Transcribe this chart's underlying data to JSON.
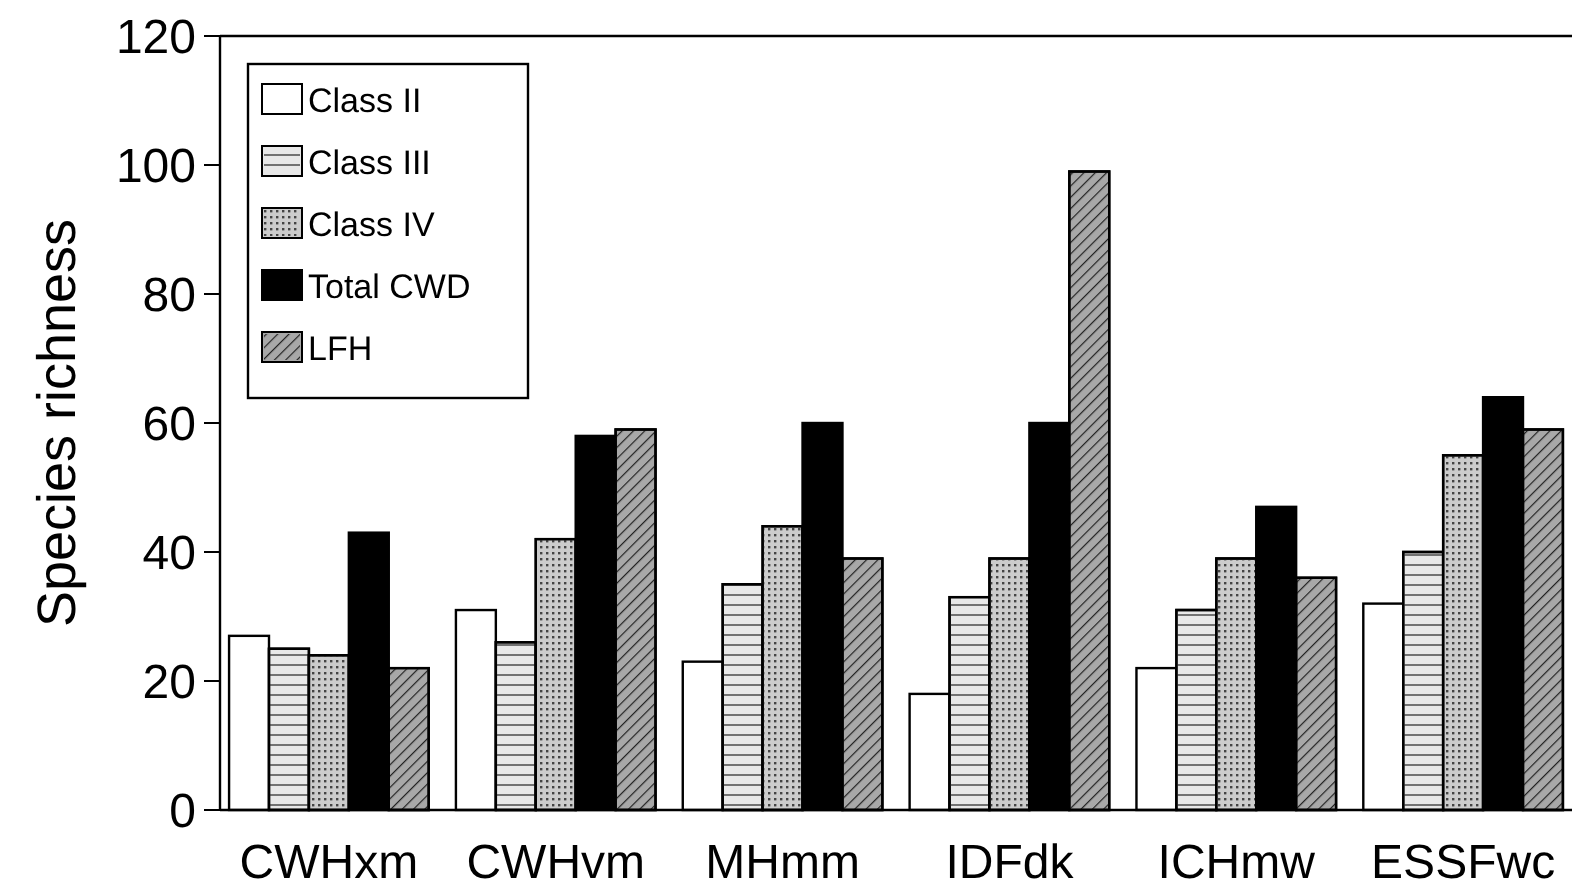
{
  "chart_data": {
    "type": "bar",
    "ylabel": "Species richness",
    "categories": [
      "CWHxm",
      "CWHvm",
      "MHmm",
      "IDFdk",
      "ICHmw",
      "ESSFwc"
    ],
    "series": [
      {
        "name": "Class II",
        "color": "#ffffff",
        "values": [
          27,
          31,
          23,
          18,
          22,
          32
        ]
      },
      {
        "name": "Class III",
        "color": "#e8e8e8",
        "values": [
          25,
          26,
          35,
          33,
          31,
          40
        ]
      },
      {
        "name": "Class IV",
        "color": "#cccccc",
        "values": [
          24,
          42,
          44,
          39,
          39,
          55
        ]
      },
      {
        "name": "Total CWD",
        "color": "#000000",
        "values": [
          43,
          58,
          60,
          60,
          47,
          64
        ]
      },
      {
        "name": "LFH",
        "color": "#a8a8a8",
        "values": [
          22,
          59,
          39,
          99,
          36,
          59
        ]
      }
    ],
    "ylim": [
      0,
      120
    ],
    "yticks": [
      0,
      20,
      40,
      60,
      80,
      100,
      120
    ],
    "grid": false,
    "legend": "top left"
  }
}
